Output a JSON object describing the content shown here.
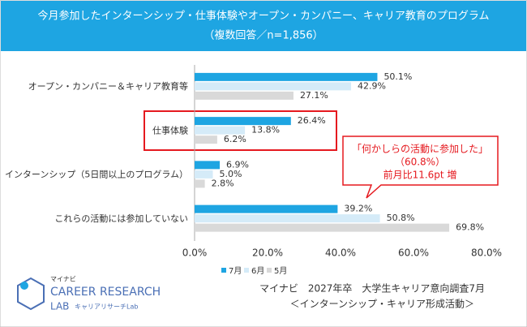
{
  "chart_data": {
    "type": "hbar",
    "title": "今月参加したインターンシップ・仕事体験やオープン・カンパニー、キャリア教育のプログラム",
    "subtitle": "（複数回答／n=1,856）",
    "categories": [
      "オープン・カンパニー＆キャリア教育等",
      "仕事体験",
      "インターンシップ（5日間以上のプログラム）",
      "これらの活動には参加していない"
    ],
    "series": [
      {
        "name": "7月",
        "color": "#1ea5e2",
        "values": [
          50.1,
          26.4,
          6.9,
          39.2
        ],
        "value_labels": [
          "50.1%",
          "26.4%",
          "6.9%",
          "39.2%"
        ]
      },
      {
        "name": "6月",
        "color": "#d5ebf8",
        "values": [
          42.9,
          13.8,
          5.0,
          50.8
        ],
        "value_labels": [
          "42.9%",
          "13.8%",
          "5.0%",
          "50.8%"
        ]
      },
      {
        "name": "5月",
        "color": "#d9d9d9",
        "values": [
          27.1,
          6.2,
          2.8,
          69.8
        ],
        "value_labels": [
          "27.1%",
          "6.2%",
          "2.8%",
          "69.8%"
        ]
      }
    ],
    "xlim": [
      0,
      80
    ],
    "xticks": [
      {
        "value": 0,
        "label": "0.0%"
      },
      {
        "value": 20,
        "label": "20.0%"
      },
      {
        "value": 40,
        "label": "40.0%"
      },
      {
        "value": 60,
        "label": "60.0%"
      },
      {
        "value": 80,
        "label": "80.0%"
      }
    ],
    "legend": "bottom",
    "annotations": [
      "「何かしらの活動に参加した」",
      "（60.8%）",
      "前月比11.6pt 増"
    ],
    "source": [
      "マイナビ　2027年卒　大学生キャリア意向調査7月",
      "＜インターンシップ・キャリア形成活動＞"
    ]
  },
  "branding": {
    "company": "マイナビ",
    "name": "CAREER RESEARCH",
    "lab": "LAB",
    "sub": "キャリアリサーチLab"
  }
}
